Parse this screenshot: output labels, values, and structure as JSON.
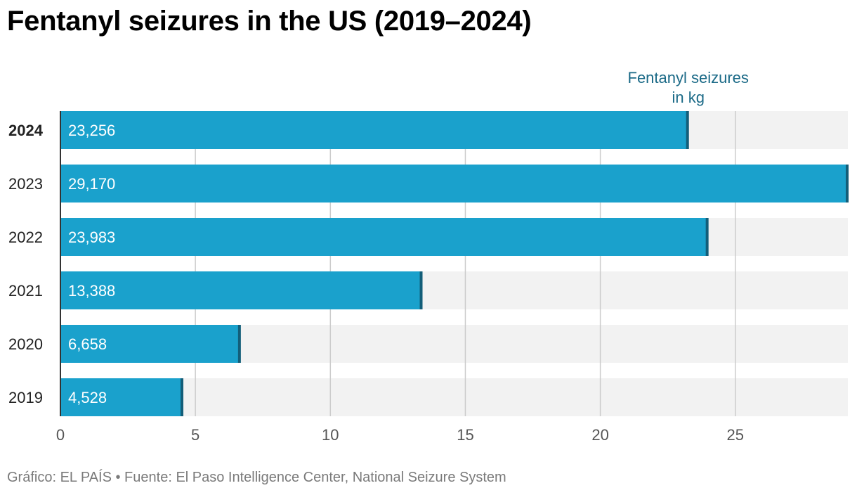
{
  "title": "Fentanyl seizures in the US (2019–2024)",
  "source": "Gráfico: EL PAÍS • Fuente: El Paso Intelligence Center, National Seizure System",
  "colors": {
    "bar": "#1aa1cc",
    "bar_end": "#135e79",
    "track": "#f2f2f2",
    "grid": "#cccccc",
    "axis": "#333333",
    "annotation": "#1b6a87"
  },
  "chart_data": {
    "type": "bar",
    "orientation": "horizontal",
    "categories": [
      "2024",
      "2023",
      "2022",
      "2021",
      "2020",
      "2019"
    ],
    "highlight_category": "2024",
    "values": [
      23.256,
      29.17,
      23.983,
      13.388,
      6.658,
      4.528
    ],
    "value_labels": [
      "23,256",
      "29,170",
      "23,983",
      "13,388",
      "6,658",
      "4,528"
    ],
    "xlim": [
      0,
      29.17
    ],
    "xticks": [
      0,
      5,
      10,
      15,
      20,
      25
    ],
    "xtick_labels": [
      "0",
      "5",
      "10",
      "15",
      "20",
      "25"
    ],
    "annotation": {
      "lines": [
        "Fentanyl seizures",
        "in kg"
      ],
      "target_category": "2024"
    },
    "xlabel": "",
    "ylabel": ""
  }
}
